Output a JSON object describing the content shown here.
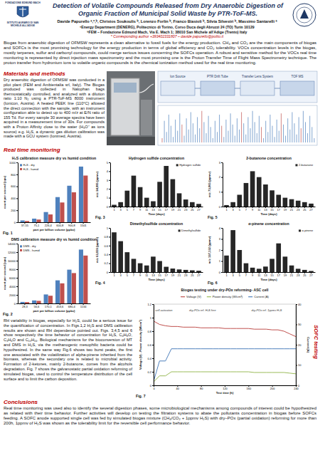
{
  "header": {
    "title": "Detection of Volatile Compounds Released from Dry Anaerobic Digestion of Organic Fraction of Municipal Solid Waste by PTR-ToF-MS.",
    "authors": "Davide Papurello ᵃ,*,ᵇ, Christos Soukoulis ᵇ, Lorenzo Forlin ᵇ, Franco Biasioli ᵇ, Silvia Silvestri ᵇ, Massimo Santarelli ᵃ",
    "affiliations": [
      "ᵃEnergy Department (DENERG), Politecnico di Torino, Corso Duca degli Abruzzi 24 (TO) Turin 10129",
      "ᵇFEM – Fondazione Edmund Mach, Via E. Mach 1; 38010 San Michele all'Adige (Trento) Italy"
    ],
    "corresponding": "* Corresponding author +393402331807 – davide.papurello@polito.it",
    "logo_left": [
      "FONDAZIONE EDMUND MACH",
      "ISTITUTO AGRARIO DI SAN MICHELE ALL'ADIGE"
    ]
  },
  "abstract": "Biogas from anaerobic digestion of OFMSW represents a clean alternative to fossil fuels for the energy production. CH₄ and CO₂ are the main components of biogas and SOFCs is the most promising technology for the energy production in terms of global efficiency and CO₂ tolerability. VOCs concentration levels in the biogas, mostly terpenes, sulfur and carbonyl compounds, could merge serious issues concerning the SOFCs operation. A robust and sensitive method for the VOCs real time monitoring is represented by direct injection mass spectrometry and the most promising one is the Proton Transfer Time of Flight Mass Spectrometry technique. The proton transfer from hydronium ions to volatile organic compounds is the chemical ionization method used for the real time monitoring.",
  "sections": [
    {
      "heading": "Materials and methods",
      "text": "Dry anaerobic digestion of OFMSW was conducted in a pilot plant (FEM and Ambientalia srl, Italy). The Biogas produced was collected in Nalophan bags thermostatically controlled, and analyzed with a dilution ratio 1:10 N₂ using a PTR-ToF-MS 8000 instrument (Ionicon, Austria). A heated PEEK line (110°C) allowed the direct connection with the sample, with an instrument configuration able to detect up to 400 m/z at E/N ratio of 155 Td. For every sample 30 average spectra have been acquired in a measurement time of 30s. For compounds with a Proton Affinity close to the water (H₃O⁺ as ions source) e.g. H₂S, a dynamic gas dilution calibration was made with a GCU system (Ionimed, Austria)."
    },
    {
      "heading": "Real time monitoring",
      "text": "RH variability in biogas, especially for H₂S, could be a serious issue for the quantification of concentration. In Figs.1,2 H₂S and DMS calibration results are shown and RH dependence pointed out. Figs. 3,4,5 and 6 show respectively the time behavior of concentration for H₂S, C₄H₈O, C₃H₆O and C₁₀H₁₆. Biological mechanisms for the bioconversion of MT and DMS in H₂S, via the methanogenic mesophilic bacteria could be hypothesized. In the same way Fig.6 shows two burst peaks, the first one associated with the volatilization of alpha-pinene inherited from the biomass, whereas the secondary one is related to microbial activity. Formation of 2-ketones, mainly 2-butanone, comes from the alcohols degradation. Fig. 7 shows the galvanostatic partial oxidation reforming of simulated biogas, used to control the temperature distribution of the cell surface and to limit the carbon deposition."
    },
    {
      "heading": "Conclusions",
      "text": "Real time monitoring was used also to identify the several digestion phases, some microbiological mechanisms among compounds of interest could be hypothesized as related with their time behavior. Further activities will develop on testing the filtration systems to abate the pollutants concentration in biogas before SOFCs feeding. A SOFC anode supported single cell was fed by simulated biogas mixture (CH₄/CO₂ + 1ppmv H₂S) with dry–POx (partial oxidation) reforming for more than 200h, 1ppmv of H₂S was shown as the tolerability limit for the reversible cell performance behavior."
    }
  ],
  "diagram": {
    "labels": [
      "Ion Source",
      "PTR Drift Tube",
      "Transfer Lens System",
      "TOF MS"
    ]
  },
  "side_label": "SOFC testing",
  "chart_data": [
    {
      "type": "bar",
      "caption": "Fig. 1",
      "title": "H₂S calibration measure dry vs humid condition",
      "x_label": "part per billion volume (ppbv)",
      "y_label": "count per second (cps)",
      "categories": [
        "37,55",
        "75,1",
        "226,4",
        "600,8",
        "900,8",
        "1501"
      ],
      "series": [
        {
          "name": "H₂S - dry",
          "color": "#4f81bd",
          "values": [
            30,
            60,
            170,
            420,
            610,
            930
          ]
        },
        {
          "name": "H₂S - humid",
          "color": "#c0504d",
          "values": [
            20,
            45,
            130,
            330,
            500,
            780
          ]
        }
      ],
      "ylim": [
        0,
        1000
      ],
      "yticks": [
        0,
        200,
        400,
        600,
        800,
        1000
      ],
      "legend": "top-left",
      "grid": false
    },
    {
      "type": "bar",
      "caption": "Fig. 2",
      "title": "DMS calibration measure dry vs humid condition",
      "x_label": "part per billion volume (ppbv)",
      "y_label": "count per second (cps)",
      "categories": [
        "28,3",
        "56,6",
        "170,1",
        "453,6",
        "680,4",
        "1134"
      ],
      "series": [
        {
          "name": "DMS - dry",
          "color": "#4f81bd",
          "values": [
            350,
            700,
            2100,
            5400,
            7900,
            12600
          ]
        },
        {
          "name": "DMS - humid",
          "color": "#c0504d",
          "values": [
            300,
            600,
            1800,
            4700,
            7100,
            11200
          ]
        }
      ],
      "ylim": [
        0,
        14000
      ],
      "yticks": [
        0,
        2000,
        4000,
        6000,
        8000,
        10000,
        12000,
        14000
      ],
      "legend": "top-left",
      "grid": false
    },
    {
      "type": "bar",
      "caption": "Fig. 3",
      "title": "Hydrogen sulfide concentration",
      "x_label": "Time (days)",
      "y_label": "m/z 34,995 (ppmv)",
      "categories": [
        "1",
        "3",
        "5",
        "7",
        "9",
        "11",
        "13",
        "15",
        "17",
        "19",
        "21",
        "23",
        "25",
        "27"
      ],
      "series": [
        {
          "name": "Hydrogen sulfide",
          "color": "#262626",
          "values": [
            0.2,
            0.5,
            1.8,
            3.5,
            2.2,
            1.0,
            0.6,
            2.8,
            4.6,
            3.1,
            1.5,
            0.8,
            0.5,
            0.3
          ]
        }
      ],
      "ylim": [
        0,
        5
      ],
      "yticks": [
        0,
        1,
        2,
        3,
        4,
        5
      ],
      "legend": "top-right",
      "grid": false
    },
    {
      "type": "bar",
      "caption": "Fig. 4",
      "title": "Dimethylsulfide concentration",
      "x_label": "Time (days)",
      "y_label": "m/z 63,026 (ppmv)",
      "categories": [
        "1",
        "3",
        "5",
        "7",
        "9",
        "11",
        "13",
        "15",
        "17",
        "19",
        "21",
        "23",
        "25",
        "27"
      ],
      "series": [
        {
          "name": "Dimethylsulfide",
          "color": "#262626",
          "values": [
            0.9,
            0.7,
            0.45,
            0.3,
            0.2,
            0.15,
            0.35,
            0.25,
            0.12,
            0.08,
            0.06,
            0.05,
            0.04,
            0.03
          ]
        }
      ],
      "ylim": [
        0,
        1
      ],
      "yticks": [
        0,
        0.2,
        0.4,
        0.6,
        0.8,
        1
      ],
      "legend": "top-right",
      "grid": false
    },
    {
      "type": "bar",
      "caption": "Fig. 5",
      "title": "2-butanone concentration",
      "x_label": "Time (days)",
      "y_label": "m/z 73,065 (ppmv)",
      "categories": [
        "1",
        "3",
        "5",
        "7",
        "9",
        "11",
        "13",
        "15",
        "17",
        "19",
        "21",
        "23",
        "25",
        "27"
      ],
      "series": [
        {
          "name": "2-butanone",
          "color": "#262626",
          "values": [
            0.1,
            0.3,
            0.8,
            1.6,
            2.4,
            2.0,
            1.5,
            1.1,
            0.8,
            0.6,
            0.5,
            0.4,
            0.3,
            0.2
          ]
        }
      ],
      "ylim": [
        0,
        3
      ],
      "yticks": [
        0,
        1,
        2,
        3
      ],
      "legend": "top-right",
      "grid": false
    },
    {
      "type": "bar",
      "caption": "Fig. 6",
      "title": "α-pinene concentration",
      "x_label": "Time (days)",
      "y_label": "m/z 137,132 (ppmv)",
      "categories": [
        "1",
        "3",
        "5",
        "7",
        "9",
        "11",
        "13",
        "15",
        "17",
        "19",
        "21",
        "23",
        "25",
        "27"
      ],
      "series": [
        {
          "name": "α-pinene",
          "color": "#262626",
          "values": [
            1.5,
            3.8,
            2.0,
            0.8,
            0.4,
            0.3,
            0.5,
            1.2,
            2.6,
            1.4,
            0.6,
            0.3,
            0.2,
            0.1
          ]
        }
      ],
      "ylim": [
        0,
        4
      ],
      "yticks": [
        0,
        1,
        2,
        3,
        4
      ],
      "legend": "top-right",
      "grid": false
    },
    {
      "type": "line",
      "caption": "Fig. 7",
      "title": "Biogas testing under dry-POx reforming- ASC cell",
      "x_label": "Test time (h)",
      "y_label": "Voltage (V) - Power density (W/cm²)",
      "y2_label": "Current (A)",
      "x": [
        0,
        10,
        20,
        30,
        40,
        50,
        60,
        70,
        80,
        90,
        100,
        110,
        120,
        130,
        140,
        150,
        160,
        170,
        180,
        190,
        200,
        210,
        220,
        230,
        240
      ],
      "series": [
        {
          "name": "Voltage (V)",
          "color": "#c0504d",
          "values": [
            0.95,
            0.9,
            0.88,
            0.87,
            0.87,
            0.86,
            0.86,
            0.86,
            0.85,
            0.85,
            0.85,
            0.85,
            0.84,
            0.84,
            0.84,
            0.84,
            0.84,
            0.83,
            0.83,
            0.83,
            0.82,
            0.82,
            0.8,
            0.76,
            0.72
          ]
        },
        {
          "name": "Power density (W/cm²)",
          "color": "#9bbb59",
          "values": [
            0.05,
            0.14,
            0.14,
            0.2,
            0.2,
            0.2,
            0.2,
            0.2,
            0.2,
            0.2,
            0.2,
            0.2,
            0.2,
            0.2,
            0.2,
            0.2,
            0.2,
            0.19,
            0.19,
            0.19,
            0.19,
            0.19,
            0.19,
            0.18,
            0.17
          ]
        },
        {
          "name": "Current (A)",
          "color": "#4f81bd",
          "axis": "y2",
          "values": [
            2,
            12,
            12,
            18,
            18,
            18,
            18,
            18,
            18,
            18,
            18,
            18,
            18,
            18,
            18,
            18,
            18,
            18,
            18,
            18,
            18,
            18,
            18,
            18,
            18
          ]
        }
      ],
      "xlim": [
        0,
        240
      ],
      "xticks": [
        0,
        40,
        80,
        120,
        160,
        200,
        240
      ],
      "ylim": [
        0,
        1.2
      ],
      "yticks": [
        0,
        0.2,
        0.4,
        0.6,
        0.8,
        1,
        1.2
      ],
      "y2lim": [
        0,
        40
      ],
      "y2ticks": [
        0,
        10,
        20,
        30,
        40
      ],
      "annotations": [
        {
          "text": "cell activation",
          "x": 3,
          "y": 1.1
        },
        {
          "text": "dry-POx ref. H₂S free",
          "x": 60,
          "y": 1.1
        },
        {
          "text": "dry-POx ref. 1ppmv H₂S",
          "x": 165,
          "y": 1.1
        }
      ],
      "legend": "top",
      "grid": false
    }
  ]
}
